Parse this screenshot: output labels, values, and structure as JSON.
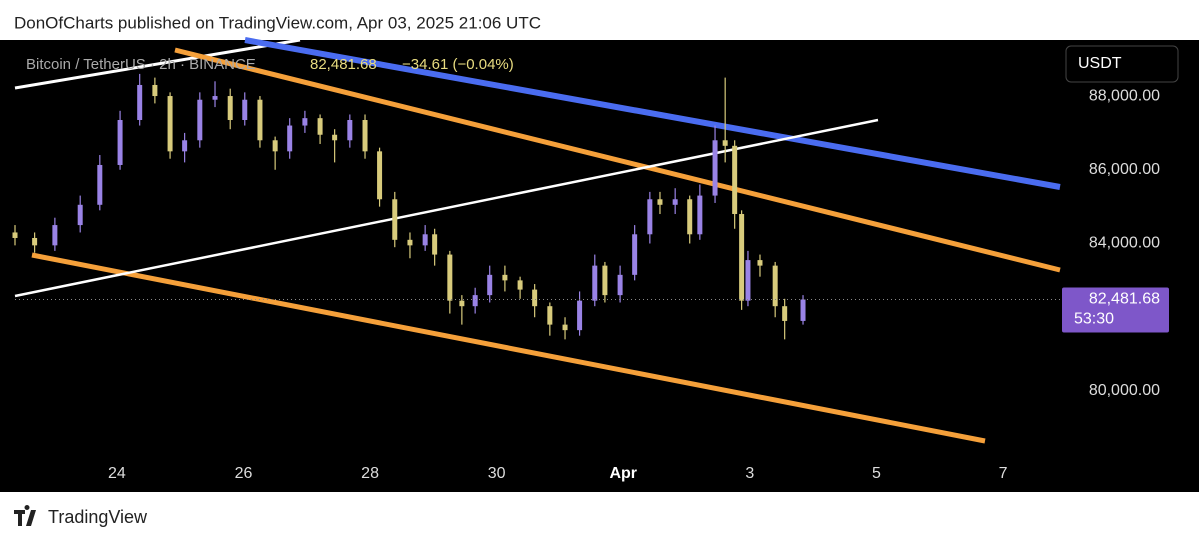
{
  "chart_data": {
    "type": "candlestick",
    "header": "DonOfCharts published on TradingView.com, Apr 03, 2025 21:06 UTC",
    "legend": {
      "symbol": "Bitcoin / TetherUS · 2h · BINANCE",
      "last": "82,481.68",
      "change": "−34.61 (−0.04%)"
    },
    "currency": "USDT",
    "footer": "TradingView",
    "last_price": {
      "value": 82481.68,
      "label": "82,481.68"
    },
    "countdown": "53:30",
    "up_color": "#9a83e6",
    "down_color": "#d8cb7c",
    "x": [
      22.39,
      22.7,
      23.02,
      23.42,
      23.73,
      24.05,
      24.36,
      24.6,
      24.84,
      25.07,
      25.31,
      25.55,
      25.79,
      26.02,
      26.26,
      26.5,
      26.73,
      26.97,
      27.21,
      27.44,
      27.68,
      27.92,
      28.15,
      28.39,
      28.63,
      28.87,
      29.02,
      29.26,
      29.45,
      29.66,
      29.89,
      30.13,
      30.37,
      30.6,
      30.84,
      31.08,
      31.31,
      31.55,
      31.71,
      31.95,
      32.18,
      32.42,
      32.58,
      32.82,
      33.05,
      33.21,
      33.45,
      33.61,
      33.76,
      33.87,
      33.97,
      34.16,
      34.4,
      34.55,
      34.84
    ],
    "open": [
      84300,
      84150,
      83950,
      84500,
      85050,
      86130,
      87350,
      88300,
      88000,
      86500,
      86800,
      87900,
      88000,
      87350,
      87900,
      86800,
      86500,
      87200,
      87400,
      86950,
      86800,
      87350,
      86500,
      85200,
      84100,
      83950,
      84250,
      83700,
      82450,
      82300,
      82600,
      83150,
      83000,
      82750,
      82300,
      81800,
      81650,
      82450,
      83400,
      82600,
      83150,
      84250,
      85200,
      85050,
      85200,
      84250,
      85300,
      86800,
      86650,
      84800,
      82450,
      83550,
      83400,
      82300,
      81900
    ],
    "high": [
      84500,
      84300,
      84700,
      85300,
      86400,
      87600,
      88600,
      88500,
      88100,
      87000,
      88100,
      88400,
      88200,
      88100,
      88000,
      86900,
      87400,
      87600,
      87500,
      87100,
      87500,
      87500,
      86600,
      85400,
      84300,
      84500,
      84400,
      83800,
      82600,
      82800,
      83400,
      83400,
      83100,
      82900,
      82400,
      82000,
      82700,
      83700,
      83500,
      83400,
      84500,
      85400,
      85400,
      85500,
      85300,
      85600,
      87200,
      88500,
      86800,
      84900,
      83800,
      83700,
      83500,
      82500,
      82600
    ],
    "low": [
      83950,
      83750,
      83800,
      84300,
      84900,
      86000,
      87200,
      87800,
      86300,
      86200,
      86600,
      87700,
      87100,
      87200,
      86600,
      86000,
      86300,
      87000,
      86700,
      86200,
      86600,
      86300,
      85000,
      83900,
      83600,
      83800,
      83400,
      82100,
      81800,
      82100,
      82400,
      82700,
      82500,
      82000,
      81500,
      81400,
      81500,
      82300,
      82400,
      82400,
      83000,
      84000,
      84800,
      84800,
      84000,
      84100,
      85100,
      86200,
      84400,
      82200,
      82300,
      83100,
      82000,
      81400,
      81800
    ],
    "close": [
      84150,
      83950,
      84500,
      85050,
      86130,
      87350,
      88300,
      88000,
      86500,
      86800,
      87900,
      88000,
      87350,
      87900,
      86800,
      86500,
      87200,
      87400,
      86950,
      86800,
      87350,
      86500,
      85200,
      84100,
      83950,
      84250,
      83700,
      82450,
      82300,
      82600,
      83150,
      83000,
      82750,
      82300,
      81800,
      81650,
      82450,
      83400,
      82600,
      83150,
      84250,
      85200,
      85050,
      85200,
      84250,
      85300,
      86800,
      86650,
      84800,
      82450,
      83550,
      83400,
      82300,
      81900,
      82481.68
    ],
    "xlim": [
      22.39,
      38.9
    ],
    "xticks": [
      24,
      26,
      28,
      30,
      {
        "value": 32,
        "label": "Apr"
      },
      {
        "value": 34,
        "label": "3"
      },
      {
        "value": 36,
        "label": "5"
      },
      {
        "value": 38,
        "label": "7"
      }
    ],
    "ylim": [
      77260,
      89520
    ],
    "yticks": [
      {
        "value": 80000,
        "label": "80,000.00"
      },
      {
        "value": 84000,
        "label": "84,000.00"
      },
      {
        "value": 86000,
        "label": "86,000.00"
      },
      {
        "value": 88000,
        "label": "88,000.00"
      }
    ]
  }
}
